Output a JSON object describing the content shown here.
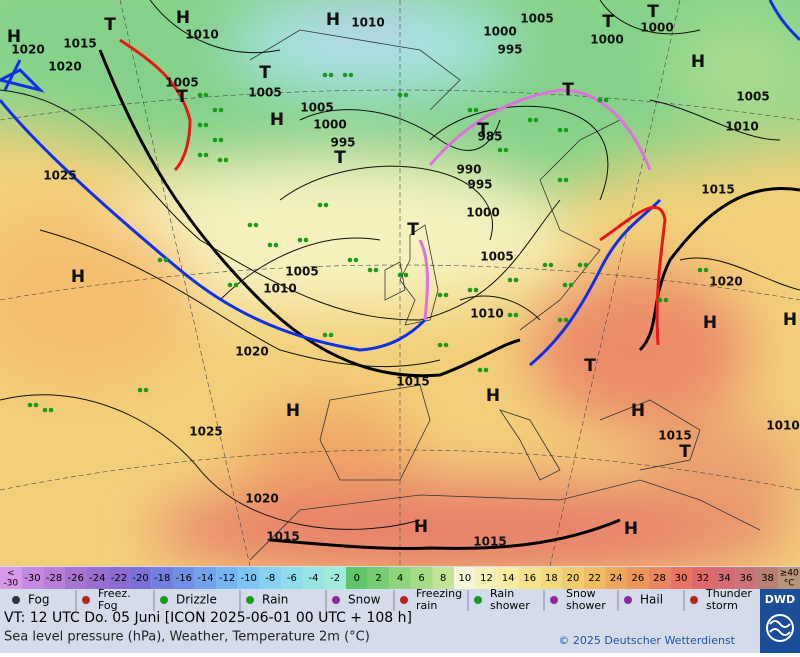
{
  "map": {
    "labels": [
      "H",
      "H",
      "T",
      "1020",
      "1015",
      "1020",
      "1010",
      "H",
      "1010",
      "1005",
      "T",
      "T",
      "1000",
      "1000",
      "1000",
      "995",
      "H",
      "1005",
      "T",
      "1005",
      "T",
      "1005",
      "H",
      "1000",
      "995",
      "T",
      "T",
      "1005",
      "1010",
      "T",
      "985",
      "990",
      "995",
      "1000",
      "1025",
      "1015",
      "T",
      "1005",
      "1010",
      "1005",
      "H",
      "1020",
      "1010",
      "H",
      "H",
      "1020",
      "1015",
      "T",
      "H",
      "H",
      "H",
      "1025",
      "1015",
      "1010",
      "T",
      "1020",
      "1015",
      "H",
      "H",
      "1015"
    ]
  },
  "legend": {
    "scale_low": {
      "sign": "<",
      "value": "-30",
      "color": "#d89ae8"
    },
    "scale": [
      {
        "label": "-30",
        "color": "#c58ae0"
      },
      {
        "label": "-28",
        "color": "#b87ed8"
      },
      {
        "label": "-26",
        "color": "#a874d0"
      },
      {
        "label": "-24",
        "color": "#9a6ecc"
      },
      {
        "label": "-22",
        "color": "#8c6ad0"
      },
      {
        "label": "-20",
        "color": "#7a70d8"
      },
      {
        "label": "-18",
        "color": "#7480e0"
      },
      {
        "label": "-16",
        "color": "#7090e6"
      },
      {
        "label": "-14",
        "color": "#72a2ec"
      },
      {
        "label": "-12",
        "color": "#78b4f0"
      },
      {
        "label": "-10",
        "color": "#80c4f2"
      },
      {
        "label": "-8",
        "color": "#88d2f0"
      },
      {
        "label": "-6",
        "color": "#90dcec"
      },
      {
        "label": "-4",
        "color": "#96e4e4"
      },
      {
        "label": "-2",
        "color": "#a0ecdc"
      },
      {
        "label": "0",
        "color": "#62c46a"
      },
      {
        "label": "2",
        "color": "#78cc74"
      },
      {
        "label": "4",
        "color": "#90d47c"
      },
      {
        "label": "6",
        "color": "#a6dc88"
      },
      {
        "label": "8",
        "color": "#c2e496"
      },
      {
        "label": "10",
        "color": "#f6f6d8"
      },
      {
        "label": "12",
        "color": "#f8f2b8"
      },
      {
        "label": "14",
        "color": "#f8eca0"
      },
      {
        "label": "16",
        "color": "#f6e28c"
      },
      {
        "label": "18",
        "color": "#f4d87c"
      },
      {
        "label": "20",
        "color": "#f2cc6c"
      },
      {
        "label": "22",
        "color": "#f0bc62"
      },
      {
        "label": "24",
        "color": "#eea85c"
      },
      {
        "label": "26",
        "color": "#ec965c"
      },
      {
        "label": "28",
        "color": "#ea8660"
      },
      {
        "label": "30",
        "color": "#e87464"
      },
      {
        "label": "32",
        "color": "#e06a6a"
      },
      {
        "label": "34",
        "color": "#d46c72"
      },
      {
        "label": "36",
        "color": "#c87478"
      },
      {
        "label": "38",
        "color": "#b88070"
      }
    ],
    "scale_high": {
      "value": "≥40",
      "unit": "°C",
      "color": "#b89478"
    },
    "symbols": [
      "Fog",
      "Freez. Fog",
      "Drizzle",
      "Rain",
      "Snow",
      "Freezing rain",
      "Rain shower",
      "Snow shower",
      "Hail",
      "Thunder storm"
    ]
  },
  "footer": {
    "valid": "VT: 12 UTC Do.  05 Juni [ICON 2025-06-01  00 UTC + 108 h]",
    "description": "Sea level pressure (hPa), Weather, Temperature 2m (°C)",
    "copyright": "© 2025 Deutscher Wetterdienst",
    "logo": "DWD"
  }
}
